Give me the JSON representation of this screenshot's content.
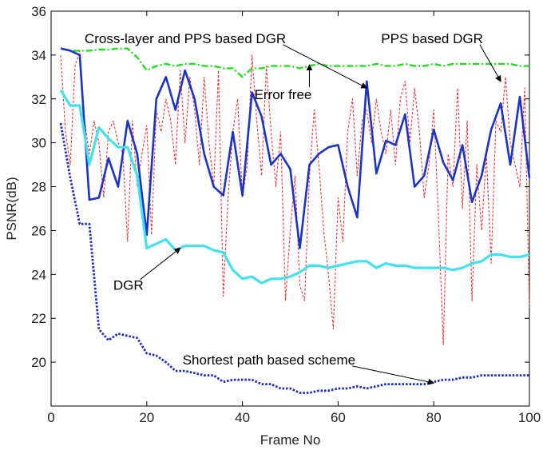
{
  "chart_data": {
    "type": "line",
    "title": "",
    "xlabel": "Frame No",
    "ylabel": "PSNR(dB)",
    "xlim": [
      0,
      100
    ],
    "ylim": [
      18,
      36
    ],
    "xticks": [
      0,
      20,
      40,
      60,
      80,
      100
    ],
    "yticks": [
      20,
      22,
      24,
      26,
      28,
      30,
      32,
      34,
      36
    ],
    "grid": false,
    "series": [
      {
        "key": "error_free",
        "color": "#22dd22",
        "style": "dashdot",
        "x": [
          2,
          4,
          6,
          8,
          10,
          12,
          14,
          16,
          18,
          20,
          22,
          24,
          26,
          28,
          30,
          32,
          34,
          36,
          38,
          40,
          42,
          44,
          46,
          48,
          50,
          52,
          54,
          56,
          58,
          60,
          62,
          64,
          66,
          68,
          70,
          72,
          74,
          76,
          78,
          80,
          82,
          84,
          86,
          88,
          90,
          92,
          94,
          96,
          98,
          100
        ],
        "y": [
          34.3,
          34.2,
          34.2,
          34.2,
          34.25,
          34.25,
          34.3,
          34.3,
          33.9,
          33.3,
          33.5,
          33.6,
          33.5,
          33.6,
          33.6,
          33.5,
          33.5,
          33.4,
          33.4,
          33.0,
          33.4,
          33.4,
          33.5,
          33.5,
          33.5,
          33.4,
          33.5,
          33.6,
          33.5,
          33.5,
          33.5,
          33.5,
          33.5,
          33.6,
          33.5,
          33.5,
          33.6,
          33.5,
          33.5,
          33.6,
          33.5,
          33.6,
          33.6,
          33.6,
          33.6,
          33.6,
          33.6,
          33.6,
          33.5,
          33.5
        ]
      },
      {
        "key": "pps_dgr",
        "color": "#ee3333",
        "style": "dotted",
        "x": [
          2,
          3,
          4,
          5,
          6,
          7,
          8,
          9,
          10,
          11,
          12,
          13,
          14,
          15,
          16,
          17,
          18,
          19,
          20,
          21,
          22,
          23,
          24,
          25,
          26,
          27,
          28,
          29,
          30,
          31,
          32,
          33,
          34,
          35,
          36,
          37,
          38,
          39,
          40,
          41,
          42,
          43,
          44,
          45,
          46,
          47,
          48,
          49,
          50,
          51,
          52,
          53,
          54,
          55,
          56,
          57,
          58,
          59,
          60,
          61,
          62,
          63,
          64,
          65,
          66,
          67,
          68,
          69,
          70,
          71,
          72,
          73,
          74,
          75,
          76,
          77,
          78,
          79,
          80,
          81,
          82,
          83,
          84,
          85,
          86,
          87,
          88,
          89,
          90,
          91,
          92,
          93,
          94,
          95,
          96,
          97,
          98,
          99,
          100
        ],
        "y": [
          34.0,
          30.5,
          29.0,
          33.5,
          34.2,
          31.0,
          29.5,
          31.0,
          30.0,
          27.5,
          30.5,
          31.0,
          30.0,
          29.5,
          25.5,
          31.0,
          28.0,
          29.5,
          30.8,
          25.8,
          31.5,
          30.5,
          32.0,
          31.0,
          29.0,
          33.3,
          30.0,
          33.0,
          31.5,
          29.0,
          33.0,
          30.0,
          28.0,
          33.3,
          23.0,
          27.5,
          30.5,
          32.0,
          27.5,
          29.0,
          34.0,
          31.0,
          28.5,
          33.5,
          30.5,
          28.0,
          30.5,
          22.8,
          26.0,
          28.5,
          23.5,
          22.8,
          28.5,
          31.5,
          29.0,
          26.0,
          24.0,
          21.5,
          27.5,
          25.5,
          30.5,
          32.0,
          28.5,
          31.0,
          31.5,
          30.0,
          32.0,
          30.5,
          29.5,
          31.5,
          29.0,
          32.0,
          32.8,
          30.0,
          32.5,
          30.5,
          27.5,
          29.0,
          31.5,
          26.5,
          20.8,
          29.5,
          28.0,
          32.5,
          27.0,
          31.0,
          22.8,
          29.0,
          26.0,
          29.5,
          24.5,
          31.0,
          30.5,
          33.0,
          30.0,
          29.0,
          28.0,
          32.5,
          22.5
        ]
      },
      {
        "key": "cross_layer_pps_dgr",
        "color": "#1a33c8",
        "style": "solid",
        "x": [
          2,
          4,
          6,
          8,
          10,
          12,
          14,
          16,
          18,
          20,
          22,
          24,
          26,
          28,
          30,
          32,
          34,
          36,
          38,
          40,
          42,
          44,
          46,
          48,
          50,
          52,
          54,
          56,
          58,
          60,
          62,
          64,
          66,
          68,
          70,
          72,
          74,
          76,
          78,
          80,
          82,
          84,
          86,
          88,
          90,
          92,
          94,
          96,
          98,
          100
        ],
        "y": [
          34.3,
          34.2,
          34.0,
          27.4,
          27.5,
          29.3,
          28.0,
          31.0,
          29.5,
          25.8,
          32.0,
          33.0,
          31.5,
          33.3,
          32.0,
          29.5,
          28.0,
          27.6,
          30.5,
          27.6,
          32.3,
          31.2,
          29.0,
          29.5,
          28.8,
          25.2,
          29.0,
          29.5,
          29.8,
          29.9,
          28.0,
          26.6,
          32.8,
          28.6,
          30.1,
          29.9,
          31.3,
          28.0,
          28.5,
          30.6,
          29.1,
          28.3,
          29.9,
          27.3,
          28.5,
          30.6,
          31.8,
          29.0,
          32.1,
          28.4
        ]
      },
      {
        "key": "dgr",
        "color": "#44e0ec",
        "style": "solid",
        "x": [
          2,
          4,
          6,
          8,
          10,
          12,
          14,
          16,
          18,
          20,
          22,
          24,
          26,
          28,
          30,
          32,
          34,
          36,
          38,
          40,
          42,
          44,
          46,
          48,
          50,
          52,
          54,
          56,
          58,
          60,
          62,
          64,
          66,
          68,
          70,
          72,
          74,
          76,
          78,
          80,
          82,
          84,
          86,
          88,
          90,
          92,
          94,
          96,
          98,
          100
        ],
        "y": [
          32.4,
          31.7,
          31.7,
          29.0,
          30.7,
          30.2,
          29.8,
          29.8,
          28.5,
          25.2,
          25.4,
          25.6,
          25.1,
          25.3,
          25.3,
          25.3,
          25.1,
          25.0,
          24.2,
          23.8,
          23.9,
          23.6,
          23.8,
          23.8,
          23.9,
          24.1,
          24.4,
          24.4,
          24.3,
          24.4,
          24.5,
          24.6,
          24.6,
          24.3,
          24.5,
          24.4,
          24.4,
          24.3,
          24.3,
          24.3,
          24.3,
          24.2,
          24.3,
          24.5,
          24.6,
          24.9,
          24.9,
          24.8,
          24.8,
          24.9
        ]
      },
      {
        "key": "shortest_path",
        "color": "#1a2acc",
        "style": "dense-dotted",
        "x": [
          2,
          4,
          6,
          8,
          10,
          12,
          14,
          16,
          18,
          20,
          22,
          24,
          26,
          28,
          30,
          32,
          34,
          36,
          38,
          40,
          42,
          44,
          46,
          48,
          50,
          52,
          54,
          56,
          58,
          60,
          62,
          64,
          66,
          68,
          70,
          72,
          74,
          76,
          78,
          80,
          82,
          84,
          86,
          88,
          90,
          92,
          94,
          96,
          98,
          100
        ],
        "y": [
          30.9,
          28.4,
          26.3,
          26.3,
          21.5,
          21.0,
          21.3,
          21.2,
          21.1,
          20.4,
          20.3,
          20.0,
          19.6,
          19.6,
          19.5,
          19.4,
          19.4,
          19.1,
          19.2,
          19.2,
          19.2,
          19.0,
          19.0,
          18.8,
          18.8,
          18.6,
          18.6,
          18.7,
          18.7,
          18.8,
          18.8,
          18.9,
          18.8,
          18.9,
          19.0,
          19.0,
          19.0,
          19.0,
          19.0,
          19.1,
          19.2,
          19.2,
          19.3,
          19.3,
          19.4,
          19.4,
          19.4,
          19.4,
          19.4,
          19.4
        ]
      }
    ],
    "annotations": [
      {
        "text": "Cross-layer and PPS based DGR",
        "x": 7,
        "y": 34.55,
        "arrow_to": [
          66,
          32.5
        ]
      },
      {
        "text": "PPS based DGR",
        "x": 69,
        "y": 34.55,
        "arrow_to": [
          94,
          32.8
        ]
      },
      {
        "text": "Error free",
        "x": 42.5,
        "y": 32.0,
        "arrow_to": [
          54,
          33.55
        ]
      },
      {
        "text": "DGR",
        "x": 13,
        "y": 23.3,
        "arrow_to": [
          27,
          25.2
        ]
      },
      {
        "text": "Shortest path based scheme",
        "x": 27.5,
        "y": 19.9,
        "arrow_to": [
          80,
          19.05
        ]
      }
    ]
  }
}
